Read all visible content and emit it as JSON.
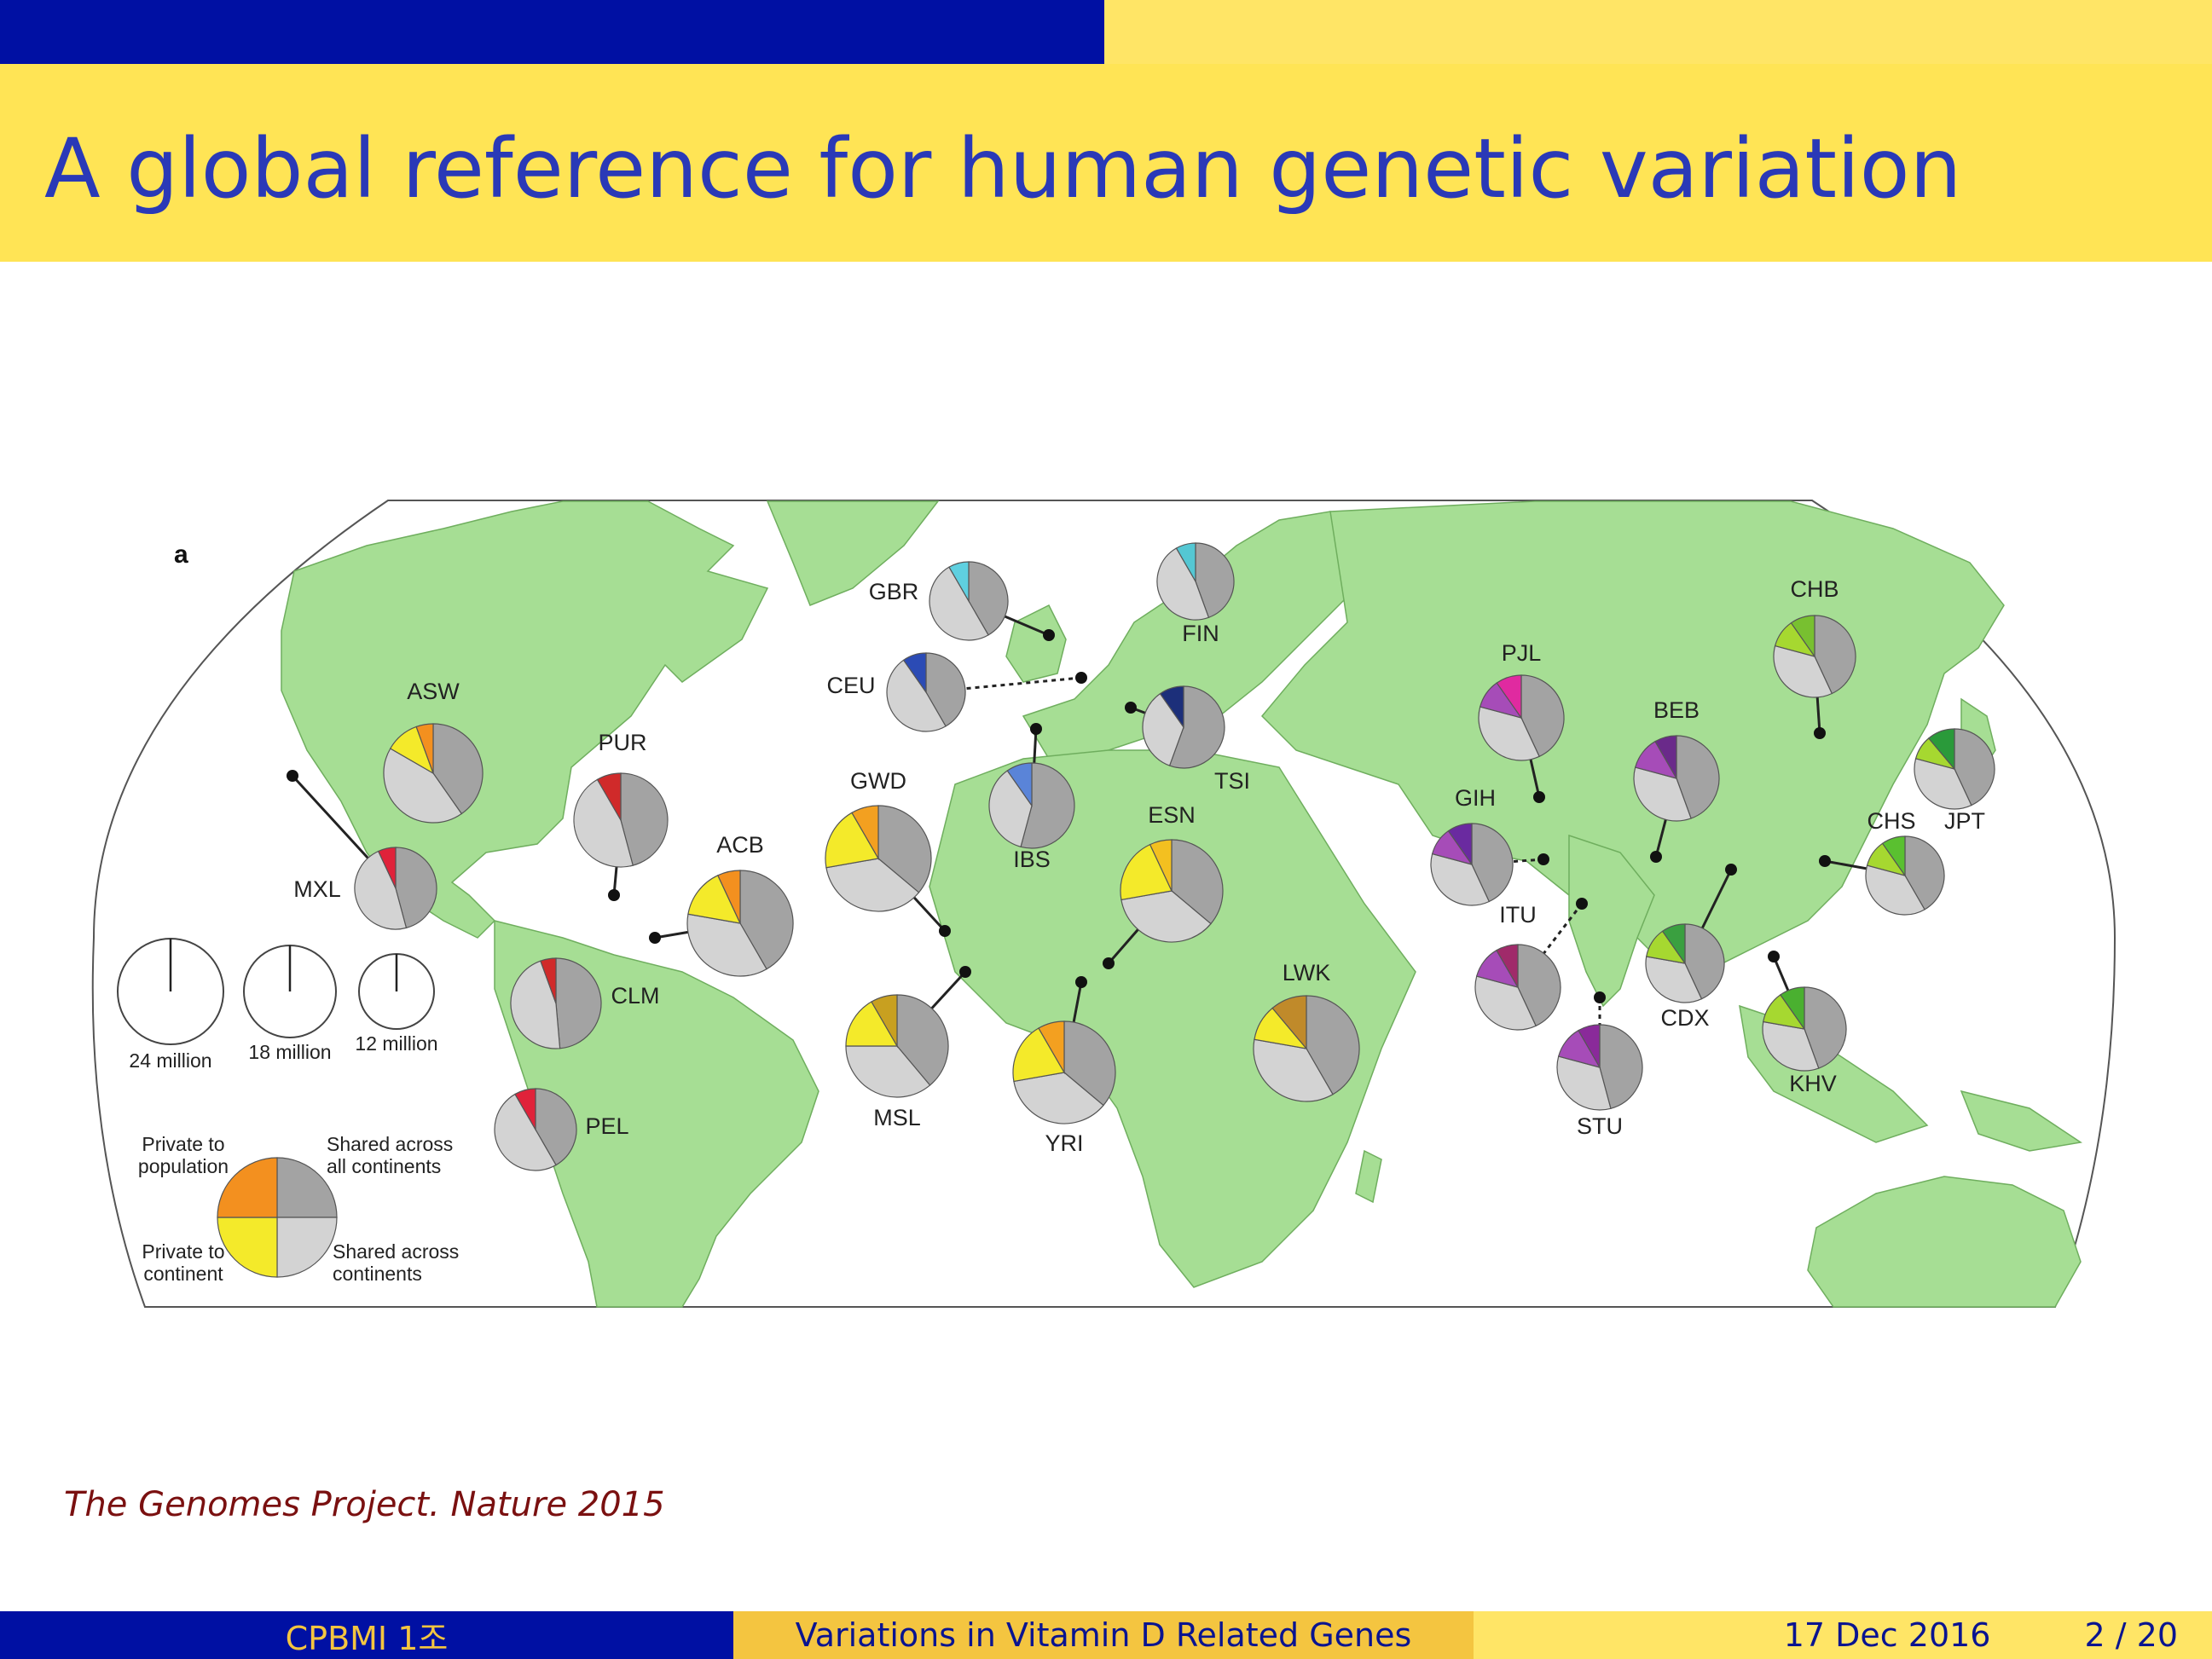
{
  "title": "A global reference for human genetic variation",
  "panel_label": "a",
  "colors": {
    "map_land": "#a6de94",
    "shared_all": "#a3a3a3",
    "shared_continents": "#d3d3d3",
    "private_continent": "#f4ea2a",
    "private_population": "#f3901f",
    "header_blue": "#0010a3",
    "header_yellow": "#ffe455",
    "title_text": "#2a39b7"
  },
  "legend": {
    "sizes": [
      {
        "label": "24 million"
      },
      {
        "label": "18 million"
      },
      {
        "label": "12 million"
      }
    ],
    "quadrants": {
      "private_to_population": [
        "Private to",
        "population"
      ],
      "shared_all_continents": [
        "Shared across",
        "all continents"
      ],
      "private_to_continent": [
        "Private to",
        "continent"
      ],
      "shared_across_continents": [
        "Shared across",
        "continents"
      ]
    }
  },
  "populations": [
    {
      "code": "ASW",
      "private_color": "#f3901f",
      "continent_color": "#f4ea2a"
    },
    {
      "code": "PUR",
      "private_color": "#d02a2a",
      "continent_color": "#d02a2a"
    },
    {
      "code": "ACB",
      "private_color": "#f3901f",
      "continent_color": "#f4ea2a"
    },
    {
      "code": "MXL",
      "private_color": "#e0223a",
      "continent_color": "#e0223a"
    },
    {
      "code": "CLM",
      "private_color": "#d02a2a",
      "continent_color": "#d02a2a"
    },
    {
      "code": "PEL",
      "private_color": "#e0223a",
      "continent_color": "#e0223a"
    },
    {
      "code": "GBR",
      "private_color": "#5fd0e0",
      "continent_color": "#5fd0e0"
    },
    {
      "code": "CEU",
      "private_color": "#2b4bb5",
      "continent_color": "#2b4bb5"
    },
    {
      "code": "FIN",
      "private_color": "#54c7d3",
      "continent_color": "#54c7d3"
    },
    {
      "code": "TSI",
      "private_color": "#1c2f7a",
      "continent_color": "#1c2f7a"
    },
    {
      "code": "IBS",
      "private_color": "#5a84d8",
      "continent_color": "#5a84d8"
    },
    {
      "code": "GWD",
      "private_color": "#f3a020",
      "continent_color": "#f4ea2a"
    },
    {
      "code": "ESN",
      "private_color": "#f3c020",
      "continent_color": "#f4ea2a"
    },
    {
      "code": "MSL",
      "private_color": "#c8a020",
      "continent_color": "#f4ea2a"
    },
    {
      "code": "YRI",
      "private_color": "#f3a020",
      "continent_color": "#f4ea2a"
    },
    {
      "code": "LWK",
      "private_color": "#c08a2a",
      "continent_color": "#f4ea2a"
    },
    {
      "code": "PJL",
      "private_color": "#e02aa0",
      "continent_color": "#a64cb8"
    },
    {
      "code": "GIH",
      "private_color": "#6a2aa0",
      "continent_color": "#a64cb8"
    },
    {
      "code": "ITU",
      "private_color": "#a02a6a",
      "continent_color": "#a64cb8"
    },
    {
      "code": "STU",
      "private_color": "#8a2a9a",
      "continent_color": "#a64cb8"
    },
    {
      "code": "BEB",
      "private_color": "#6a2a8a",
      "continent_color": "#a64cb8"
    },
    {
      "code": "CHB",
      "private_color": "#78c030",
      "continent_color": "#a6d830"
    },
    {
      "code": "JPT",
      "private_color": "#2a9a3a",
      "continent_color": "#a6d830"
    },
    {
      "code": "CHS",
      "private_color": "#5ac030",
      "continent_color": "#a6d830"
    },
    {
      "code": "CDX",
      "private_color": "#3aa040",
      "continent_color": "#a6d830"
    },
    {
      "code": "KHV",
      "private_color": "#4ab030",
      "continent_color": "#a6d830"
    }
  ],
  "citation": "The Genomes Project. Nature 2015",
  "footer": {
    "left": "CPBMI 1조",
    "middle": "Variations in Vitamin D Related Genes",
    "date": "17 Dec 2016",
    "page": "2 / 20"
  }
}
